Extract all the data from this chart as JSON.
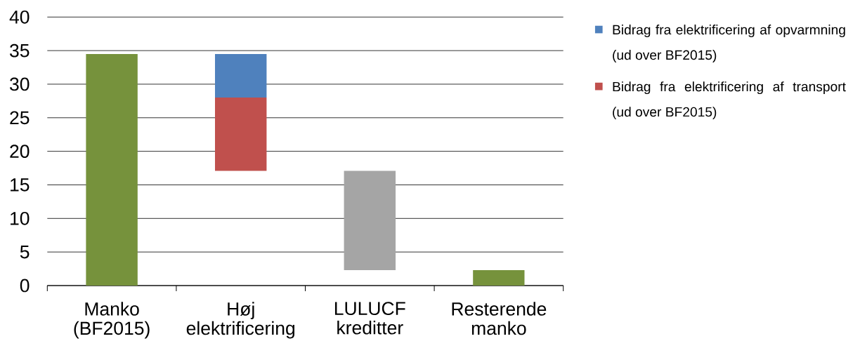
{
  "chart_data": {
    "type": "bar",
    "categories": [
      "Manko (BF2015)",
      "Høj elektrificering",
      "LULUCF kreditter",
      "Resterende manko"
    ],
    "series": [
      {
        "color": "#76923c",
        "values": [
          34.5,
          null,
          null,
          2.3
        ]
      },
      {
        "name": "Bidrag fra elektrificering af opvarmning (ud over BF2015)",
        "color": "#4f81bd",
        "values": [
          null,
          6.5,
          null,
          null
        ],
        "base": [
          null,
          28,
          null,
          null
        ]
      },
      {
        "name": "Bidrag fra elektrificering af transport (ud over BF2015)",
        "color": "#c0504d",
        "values": [
          null,
          10.9,
          null,
          null
        ],
        "base": [
          null,
          17.1,
          null,
          null
        ]
      },
      {
        "color": "#a5a5a5",
        "values": [
          null,
          null,
          14.8,
          null
        ],
        "base": [
          null,
          null,
          2.3,
          null
        ]
      }
    ],
    "ylim": [
      0,
      40
    ],
    "yticks": [
      0,
      5,
      10,
      15,
      20,
      25,
      30,
      35,
      40
    ],
    "grid": "y",
    "legend": "top right"
  }
}
